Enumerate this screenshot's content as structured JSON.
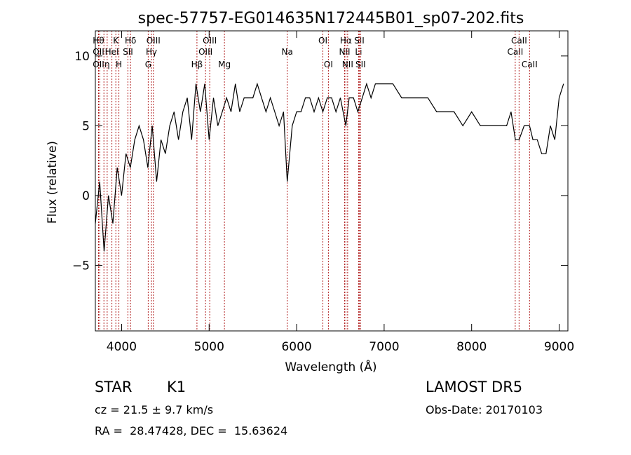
{
  "chart_data": {
    "type": "line",
    "title": "spec-57757-EG014635N172445B01_sp07-202.fits",
    "xlabel": "Wavelength (Å)",
    "ylabel": "Flux (relative)",
    "xlim": [
      3700,
      9100
    ],
    "ylim": [
      -9.7,
      11.8
    ],
    "xticks": [
      4000,
      5000,
      6000,
      7000,
      8000,
      9000
    ],
    "xtick_labels": [
      "4000",
      "5000",
      "6000",
      "7000",
      "8000",
      "9000"
    ],
    "yticks": [
      -5,
      0,
      5,
      10
    ],
    "ytick_labels": [
      "−5",
      "0",
      "5",
      "10"
    ],
    "grid": false,
    "line_color": "#000000",
    "marker_color": "#b22222",
    "spectrum": {
      "x": [
        3700,
        3750,
        3800,
        3850,
        3900,
        3950,
        4000,
        4050,
        4100,
        4150,
        4200,
        4250,
        4300,
        4350,
        4400,
        4450,
        4500,
        4550,
        4600,
        4650,
        4700,
        4750,
        4800,
        4850,
        4900,
        4950,
        5000,
        5050,
        5100,
        5150,
        5200,
        5250,
        5300,
        5350,
        5400,
        5450,
        5500,
        5550,
        5600,
        5650,
        5700,
        5750,
        5800,
        5850,
        5893,
        5950,
        6000,
        6050,
        6100,
        6150,
        6200,
        6250,
        6300,
        6350,
        6400,
        6450,
        6500,
        6563,
        6600,
        6650,
        6700,
        6750,
        6800,
        6850,
        6900,
        6950,
        7000,
        7100,
        7200,
        7300,
        7400,
        7500,
        7600,
        7700,
        7800,
        7900,
        8000,
        8100,
        8200,
        8300,
        8400,
        8450,
        8500,
        8542,
        8600,
        8662,
        8700,
        8750,
        8800,
        8850,
        8900,
        8950,
        9000,
        9050
      ],
      "y": [
        -2,
        1,
        -4,
        0,
        -2,
        2,
        0,
        3,
        2,
        4,
        5,
        4,
        2,
        5,
        1,
        4,
        3,
        5,
        6,
        4,
        6,
        7,
        4,
        8,
        6,
        8,
        4,
        7,
        5,
        6,
        7,
        6,
        8,
        6,
        7,
        7,
        7,
        8,
        7,
        6,
        7,
        6,
        5,
        6,
        1,
        5,
        6,
        6,
        7,
        7,
        6,
        7,
        6,
        7,
        7,
        6,
        7,
        5,
        7,
        7,
        6,
        7,
        8,
        7,
        8,
        8,
        8,
        8,
        7,
        7,
        7,
        7,
        6,
        6,
        6,
        5,
        6,
        5,
        5,
        5,
        5,
        6,
        4,
        4,
        5,
        5,
        4,
        4,
        3,
        3,
        5,
        4,
        7,
        8
      ]
    },
    "lines": [
      {
        "x": 3736,
        "labels": [
          "Hθ",
          "OII",
          "OII"
        ]
      },
      {
        "x": 3750,
        "labels": [
          "",
          "",
          ""
        ]
      },
      {
        "x": 3798,
        "labels": [
          "",
          "",
          ""
        ]
      },
      {
        "x": 3835,
        "labels": [
          "",
          "",
          "η"
        ]
      },
      {
        "x": 3889,
        "labels": [
          "",
          "HeI",
          ""
        ]
      },
      {
        "x": 3934,
        "labels": [
          "K",
          "",
          ""
        ]
      },
      {
        "x": 3969,
        "labels": [
          "",
          "",
          "H"
        ]
      },
      {
        "x": 4072,
        "labels": [
          "",
          "SII",
          ""
        ]
      },
      {
        "x": 4102,
        "labels": [
          "Hδ",
          "",
          ""
        ]
      },
      {
        "x": 4304,
        "labels": [
          "",
          "",
          "G"
        ]
      },
      {
        "x": 4341,
        "labels": [
          "",
          "Hγ",
          ""
        ]
      },
      {
        "x": 4363,
        "labels": [
          "OIII",
          "",
          ""
        ]
      },
      {
        "x": 4861,
        "labels": [
          "",
          "",
          "Hβ"
        ]
      },
      {
        "x": 4959,
        "labels": [
          "",
          "OIII",
          ""
        ]
      },
      {
        "x": 5007,
        "labels": [
          "OIII",
          "",
          ""
        ]
      },
      {
        "x": 5175,
        "labels": [
          "",
          "",
          "Mg"
        ]
      },
      {
        "x": 5893,
        "labels": [
          "",
          "Na",
          ""
        ]
      },
      {
        "x": 6300,
        "labels": [
          "OI",
          "",
          ""
        ]
      },
      {
        "x": 6363,
        "labels": [
          "",
          "",
          "OI"
        ]
      },
      {
        "x": 6548,
        "labels": [
          "",
          "NII",
          ""
        ]
      },
      {
        "x": 6563,
        "labels": [
          "Hα",
          "",
          ""
        ]
      },
      {
        "x": 6583,
        "labels": [
          "",
          "",
          "NII"
        ]
      },
      {
        "x": 6708,
        "labels": [
          "",
          "Li",
          ""
        ]
      },
      {
        "x": 6716,
        "labels": [
          "SII",
          "",
          ""
        ]
      },
      {
        "x": 6731,
        "labels": [
          "",
          "",
          "SII"
        ]
      },
      {
        "x": 8498,
        "labels": [
          "",
          "CaII",
          ""
        ]
      },
      {
        "x": 8542,
        "labels": [
          "CaII",
          "",
          ""
        ]
      },
      {
        "x": 8662,
        "labels": [
          "",
          "",
          "CaII"
        ]
      }
    ]
  },
  "info": {
    "class_label": "STAR",
    "subclass_label": "K1",
    "redshift": "cz = 21.5 ± 9.7 km/s",
    "coords": "RA =  28.47428, DEC =  15.63624",
    "survey": "LAMOST DR5",
    "obs_date": "Obs-Date: 20170103"
  }
}
